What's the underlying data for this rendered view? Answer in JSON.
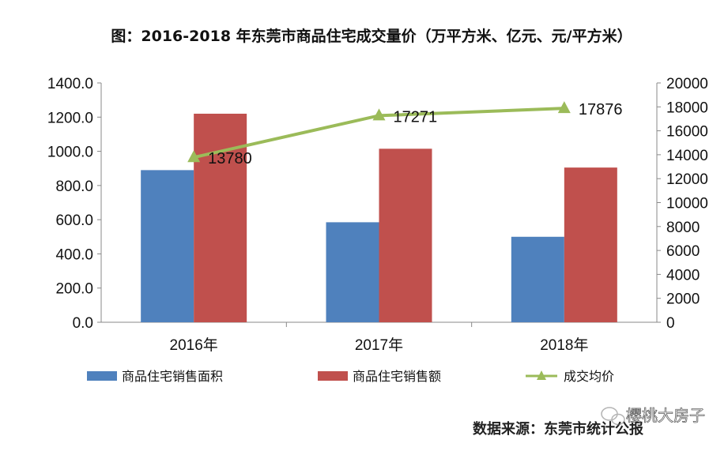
{
  "chart_data": {
    "type": "bar+line",
    "title": "图：2016-2018 年东莞市商品住宅成交量价（万平方米、亿元、元/平方米）",
    "categories": [
      "2016年",
      "2017年",
      "2018年"
    ],
    "y_left": {
      "range": [
        0,
        1400
      ],
      "ticks": [
        "0.0",
        "200.0",
        "400.0",
        "600.0",
        "800.0",
        "1000.0",
        "1200.0",
        "1400.0"
      ]
    },
    "y_right": {
      "range": [
        0,
        20000
      ],
      "ticks": [
        "0",
        "2000",
        "4000",
        "6000",
        "8000",
        "10000",
        "12000",
        "14000",
        "16000",
        "18000",
        "20000"
      ]
    },
    "series": [
      {
        "name": "商品住宅销售面积",
        "type": "bar",
        "axis": "left",
        "color": "#4f81bd",
        "values": [
          890,
          585,
          500
        ]
      },
      {
        "name": "商品住宅销售额",
        "type": "bar",
        "axis": "left",
        "color": "#c0504d",
        "values": [
          1220,
          1015,
          905
        ]
      },
      {
        "name": "成交均价",
        "type": "line",
        "axis": "right",
        "color": "#9bbb59",
        "marker": "triangle",
        "values": [
          13780,
          17271,
          17876
        ],
        "data_labels": [
          "13780",
          "17271",
          "17876"
        ]
      }
    ],
    "grid": false,
    "legend": "bottom"
  },
  "source": "数据来源：东莞市统计公报",
  "watermark": "樱桃大房子"
}
